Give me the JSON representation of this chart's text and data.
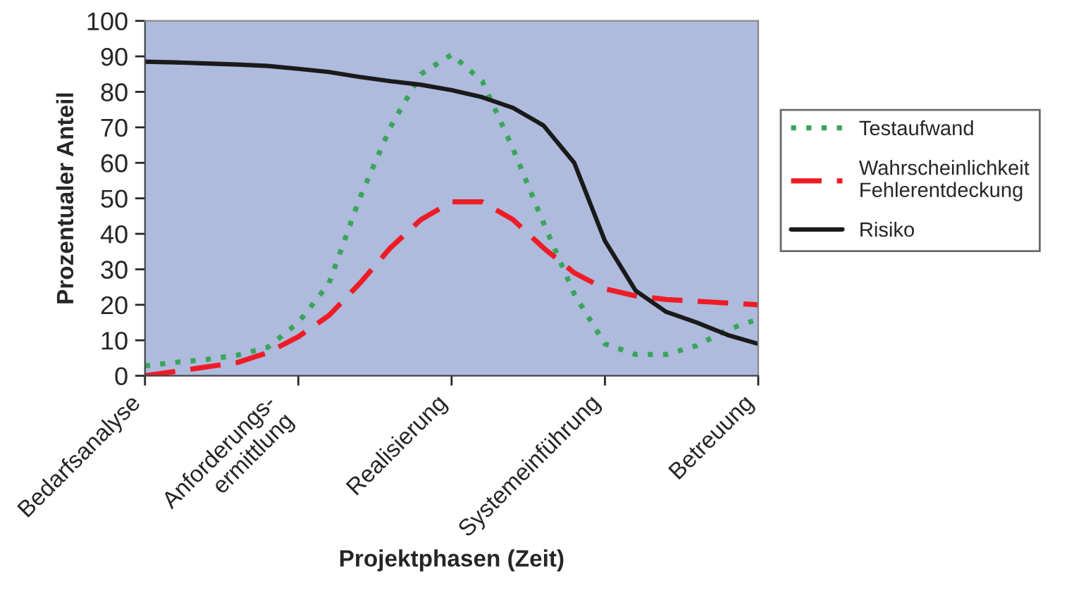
{
  "chart_data": {
    "type": "line",
    "xlabel": "Projektphasen (Zeit)",
    "ylabel": "Prozentualer Anteil",
    "categories": [
      "Bedarfsanalyse",
      null,
      null,
      null,
      null,
      "Anforderungs-\nermittlung",
      null,
      null,
      null,
      null,
      "Realisierung",
      null,
      null,
      null,
      null,
      "Systemeinführung",
      null,
      null,
      null,
      null,
      "Betreuung"
    ],
    "ylim": [
      0,
      100
    ],
    "yticks": [
      0,
      10,
      20,
      30,
      40,
      50,
      60,
      70,
      80,
      90,
      100
    ],
    "grid": false,
    "legend": "right",
    "marker": "none",
    "series": [
      {
        "name": "Testaufwand",
        "color": "#3aa55a",
        "line_style": "dotted",
        "values": [
          2.8,
          3.8,
          4.6,
          5.8,
          8,
          15,
          26,
          50,
          70,
          85,
          90.5,
          83,
          64,
          43,
          23,
          9,
          6,
          6,
          8.5,
          13,
          16
        ]
      },
      {
        "name": "Wahrscheinlichkeit\nFehlerentdeckung",
        "color": "#ee1c25",
        "line_style": "dashed",
        "values": [
          0,
          1.2,
          2.5,
          3.7,
          6.5,
          11,
          17,
          26,
          36,
          44,
          49,
          49,
          44,
          36,
          29,
          24.5,
          22.5,
          21.5,
          21,
          20.5,
          20
        ]
      },
      {
        "name": "Risiko",
        "color": "#1a1a1a",
        "line_style": "solid",
        "values": [
          88.5,
          88.3,
          88,
          87.7,
          87.3,
          86.5,
          85.6,
          84.2,
          83,
          82,
          80.5,
          78.5,
          75.5,
          70.5,
          60,
          38,
          24,
          18,
          15,
          11.5,
          9
        ]
      }
    ]
  }
}
